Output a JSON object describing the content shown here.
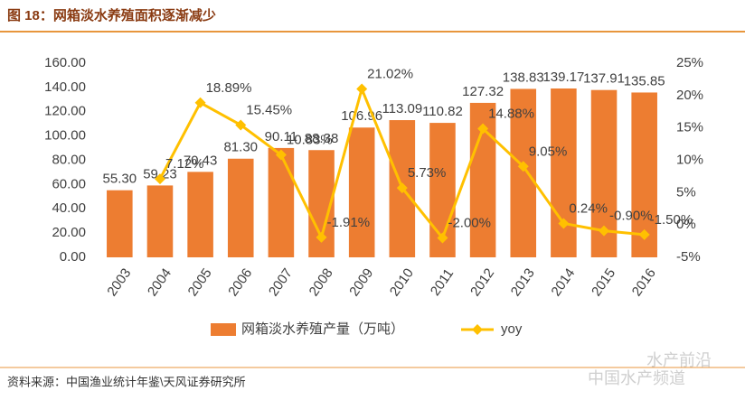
{
  "chart_data": {
    "type": "bar",
    "title": "图 18：网箱淡水养殖面积逐渐减少",
    "source": "资料来源：中国渔业统计年鉴\\天风证券研究所",
    "watermarks": [
      "水产前沿",
      "中国水产频道"
    ],
    "categories": [
      "2003",
      "2004",
      "2005",
      "2006",
      "2007",
      "2008",
      "2009",
      "2010",
      "2011",
      "2012",
      "2013",
      "2014",
      "2015",
      "2016"
    ],
    "series": [
      {
        "name": "网箱淡水养殖产量（万吨）",
        "type": "bar",
        "color": "#ED7D31",
        "values": [
          55.3,
          59.23,
          70.43,
          81.3,
          90.11,
          88.38,
          106.96,
          113.09,
          110.82,
          127.32,
          138.83,
          139.17,
          137.91,
          135.85
        ],
        "value_labels": [
          "55.30",
          "59.23",
          "70.43",
          "81.30",
          "90.11",
          "88.38",
          "106.96",
          "113.09",
          "110.82",
          "127.32",
          "138.83",
          "139.17",
          "137.91",
          "135.85"
        ]
      },
      {
        "name": "yoy",
        "type": "line",
        "axis": "y2",
        "color": "#FFC000",
        "values": [
          null,
          7.12,
          18.89,
          15.45,
          10.83,
          -1.91,
          21.02,
          5.73,
          -2.0,
          14.88,
          9.05,
          0.24,
          -0.9,
          -1.5
        ],
        "value_labels": [
          null,
          "7.12%",
          "18.89%",
          "15.45%",
          "10.83%",
          "-1.91%",
          "21.02%",
          "5.73%",
          "-2.00%",
          "14.88%",
          "9.05%",
          "0.24%",
          "-0.90%",
          "-1.50%"
        ]
      }
    ],
    "ylim": [
      0,
      160
    ],
    "yticks": [
      {
        "value": 0,
        "label": "0.00"
      },
      {
        "value": 20,
        "label": "20.00"
      },
      {
        "value": 40,
        "label": "40.00"
      },
      {
        "value": 60,
        "label": "60.00"
      },
      {
        "value": 80,
        "label": "80.00"
      },
      {
        "value": 100,
        "label": "100.00"
      },
      {
        "value": 120,
        "label": "120.00"
      },
      {
        "value": 140,
        "label": "140.00"
      },
      {
        "value": 160,
        "label": "160.00"
      }
    ],
    "y2lim": [
      -5,
      25
    ],
    "y2ticks": [
      {
        "value": -5,
        "label": "-5%"
      },
      {
        "value": 0,
        "label": "0%"
      },
      {
        "value": 5,
        "label": "5%"
      },
      {
        "value": 10,
        "label": "10%"
      },
      {
        "value": 15,
        "label": "15%"
      },
      {
        "value": 20,
        "label": "20%"
      },
      {
        "value": 25,
        "label": "25%"
      }
    ]
  }
}
